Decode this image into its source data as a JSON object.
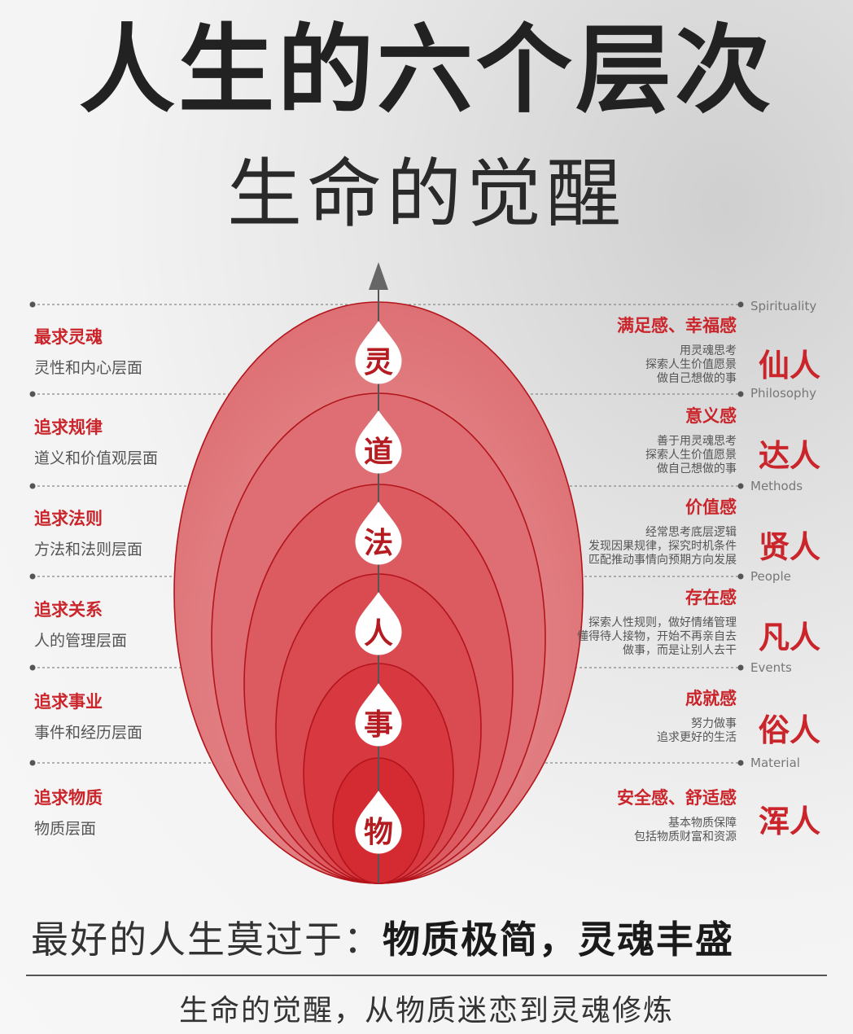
{
  "header": {
    "title": "人生的六个层次",
    "subtitle": "生命的觉醒"
  },
  "levels": [
    {
      "glyph": "灵",
      "seek": "最求灵魂",
      "layer": "灵性和内心层面",
      "feeling": "满足感、幸福感",
      "desc": [
        "用灵魂思考",
        "探索人生价值愿景",
        "做自己想做的事"
      ],
      "person": "仙人",
      "english": "Spirituality"
    },
    {
      "glyph": "道",
      "seek": "追求规律",
      "layer": "道义和价值观层面",
      "feeling": "意义感",
      "desc": [
        "善于用灵魂思考",
        "探索人生价值愿景",
        "做自己想做的事"
      ],
      "person": "达人",
      "english": "Philosophy"
    },
    {
      "glyph": "法",
      "seek": "追求法则",
      "layer": "方法和法则层面",
      "feeling": "价值感",
      "desc": [
        "经常思考底层逻辑",
        "发现因果规律，探究时机条件",
        "匹配推动事情向预期方向发展"
      ],
      "person": "贤人",
      "english": "Methods"
    },
    {
      "glyph": "人",
      "seek": "追求关系",
      "layer": "人的管理层面",
      "feeling": "存在感",
      "desc": [
        "探索人性规则，做好情绪管理",
        "懂得待人接物，开始不再亲自去",
        "做事，而是让别人去干"
      ],
      "person": "凡人",
      "english": "People"
    },
    {
      "glyph": "事",
      "seek": "追求事业",
      "layer": "事件和经历层面",
      "feeling": "成就感",
      "desc": [
        "努力做事",
        "追求更好的生活"
      ],
      "person": "俗人",
      "english": "Events"
    },
    {
      "glyph": "物",
      "seek": "追求物质",
      "layer": "物质层面",
      "feeling": "安全感、舒适感",
      "desc": [
        "基本物质保障",
        "包括物质财富和资源"
      ],
      "person": "浑人",
      "english": "Material"
    }
  ],
  "colors": {
    "accent": "#c9252b",
    "ellipse_outer": "#e07f82",
    "ellipse_inner": "#d42129"
  },
  "slogan": {
    "lead": "最好的人生莫过于：",
    "emphasis": "物质极简，灵魂丰盛"
  },
  "footer": "生命的觉醒，从物质迷恋到灵魂修炼"
}
